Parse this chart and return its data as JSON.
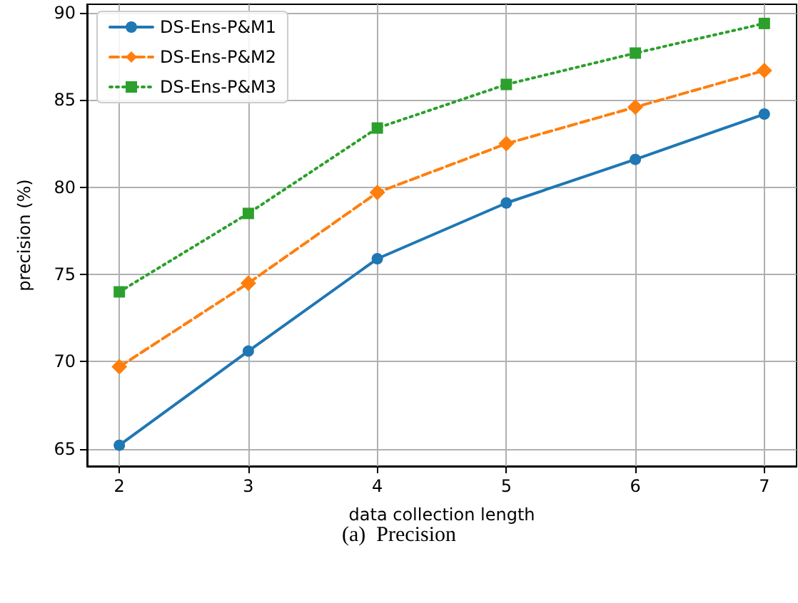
{
  "chart_data": {
    "type": "line",
    "xlabel": "data collection length",
    "ylabel": "precision (%)",
    "annotations": [
      "(a)  Precision"
    ],
    "x": [
      2,
      3,
      4,
      5,
      6,
      7
    ],
    "series": [
      {
        "name": "DS-Ens-P&M1",
        "color": "#1f77b4",
        "marker": "circle",
        "line_style": "solid",
        "values": [
          65.2,
          70.6,
          75.9,
          79.1,
          81.6,
          84.2
        ]
      },
      {
        "name": "DS-Ens-P&M2",
        "color": "#ff7f0e",
        "marker": "diamond",
        "line_style": "dashed",
        "values": [
          69.7,
          74.5,
          79.7,
          82.5,
          84.6,
          86.7
        ]
      },
      {
        "name": "DS-Ens-P&M3",
        "color": "#2ca02c",
        "marker": "square",
        "line_style": "dotted",
        "values": [
          74.0,
          78.5,
          83.4,
          85.9,
          87.7,
          89.4
        ]
      }
    ],
    "xlim": [
      1.75,
      7.25
    ],
    "xticks": [
      2,
      3,
      4,
      5,
      6,
      7
    ],
    "ylim": [
      64,
      90.5
    ],
    "yticks": [
      65,
      70,
      75,
      80,
      85,
      90
    ],
    "grid": true,
    "legend": "top left"
  }
}
